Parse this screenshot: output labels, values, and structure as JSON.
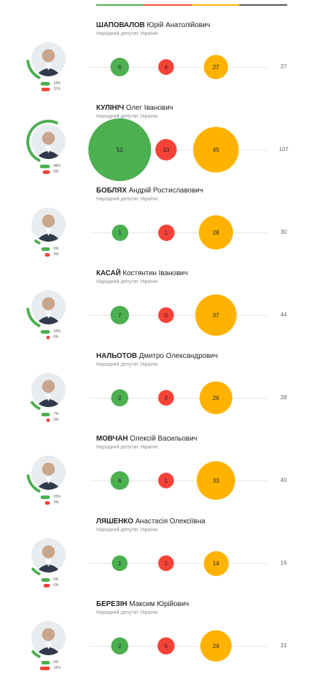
{
  "legend": {
    "colors": {
      "green": "#4caf50",
      "red": "#f44336",
      "orange": "#ffb300",
      "gray": "#555555"
    }
  },
  "deputies": [
    {
      "surname": "ШАПОВАЛОВ",
      "given": "Юрій Анатолійович",
      "role": "Народний депутат України",
      "green": "6",
      "red": "4",
      "orange": "27",
      "total": "37",
      "green_pct": "16%",
      "red_pct": "11%"
    },
    {
      "surname": "КУЛІНІЧ",
      "given": "Олег Іванович",
      "role": "Народний депутат України",
      "green": "52",
      "red": "10",
      "orange": "45",
      "total": "107",
      "green_pct": "49%",
      "red_pct": "9%"
    },
    {
      "surname": "БОБЛЯХ",
      "given": "Андрій Ростиславович",
      "role": "Народний депутат України",
      "green": "1",
      "red": "1",
      "orange": "28",
      "total": "30",
      "green_pct": "3%",
      "red_pct": "3%"
    },
    {
      "surname": "КАСАЙ",
      "given": "Костянтин Іванович",
      "role": "Народний депутат України",
      "green": "7",
      "red": "0",
      "orange": "37",
      "total": "44",
      "green_pct": "16%",
      "red_pct": "0%"
    },
    {
      "surname": "НАЛЬОТОВ",
      "given": "Дмитро Олександрович",
      "role": "Народний депутат України",
      "green": "2",
      "red": "0",
      "orange": "26",
      "total": "28",
      "green_pct": "7%",
      "red_pct": "0%"
    },
    {
      "surname": "МОВЧАН",
      "given": "Олексій Васильович",
      "role": "Народний депутат України",
      "green": "6",
      "red": "1",
      "orange": "33",
      "total": "40",
      "green_pct": "15%",
      "red_pct": "3%"
    },
    {
      "surname": "ЛЯШЕНКО",
      "given": "Анастасія Олексіївна",
      "role": "Народний депутат України",
      "green": "1",
      "red": "1",
      "orange": "14",
      "total": "16",
      "green_pct": "6%",
      "red_pct": "6%"
    },
    {
      "surname": "БЕРЕЗІН",
      "given": "Максим Юрійович",
      "role": "Народний депутат України",
      "green": "2",
      "red": "5",
      "orange": "24",
      "total": "31",
      "green_pct": "6%",
      "red_pct": "16%"
    }
  ]
}
